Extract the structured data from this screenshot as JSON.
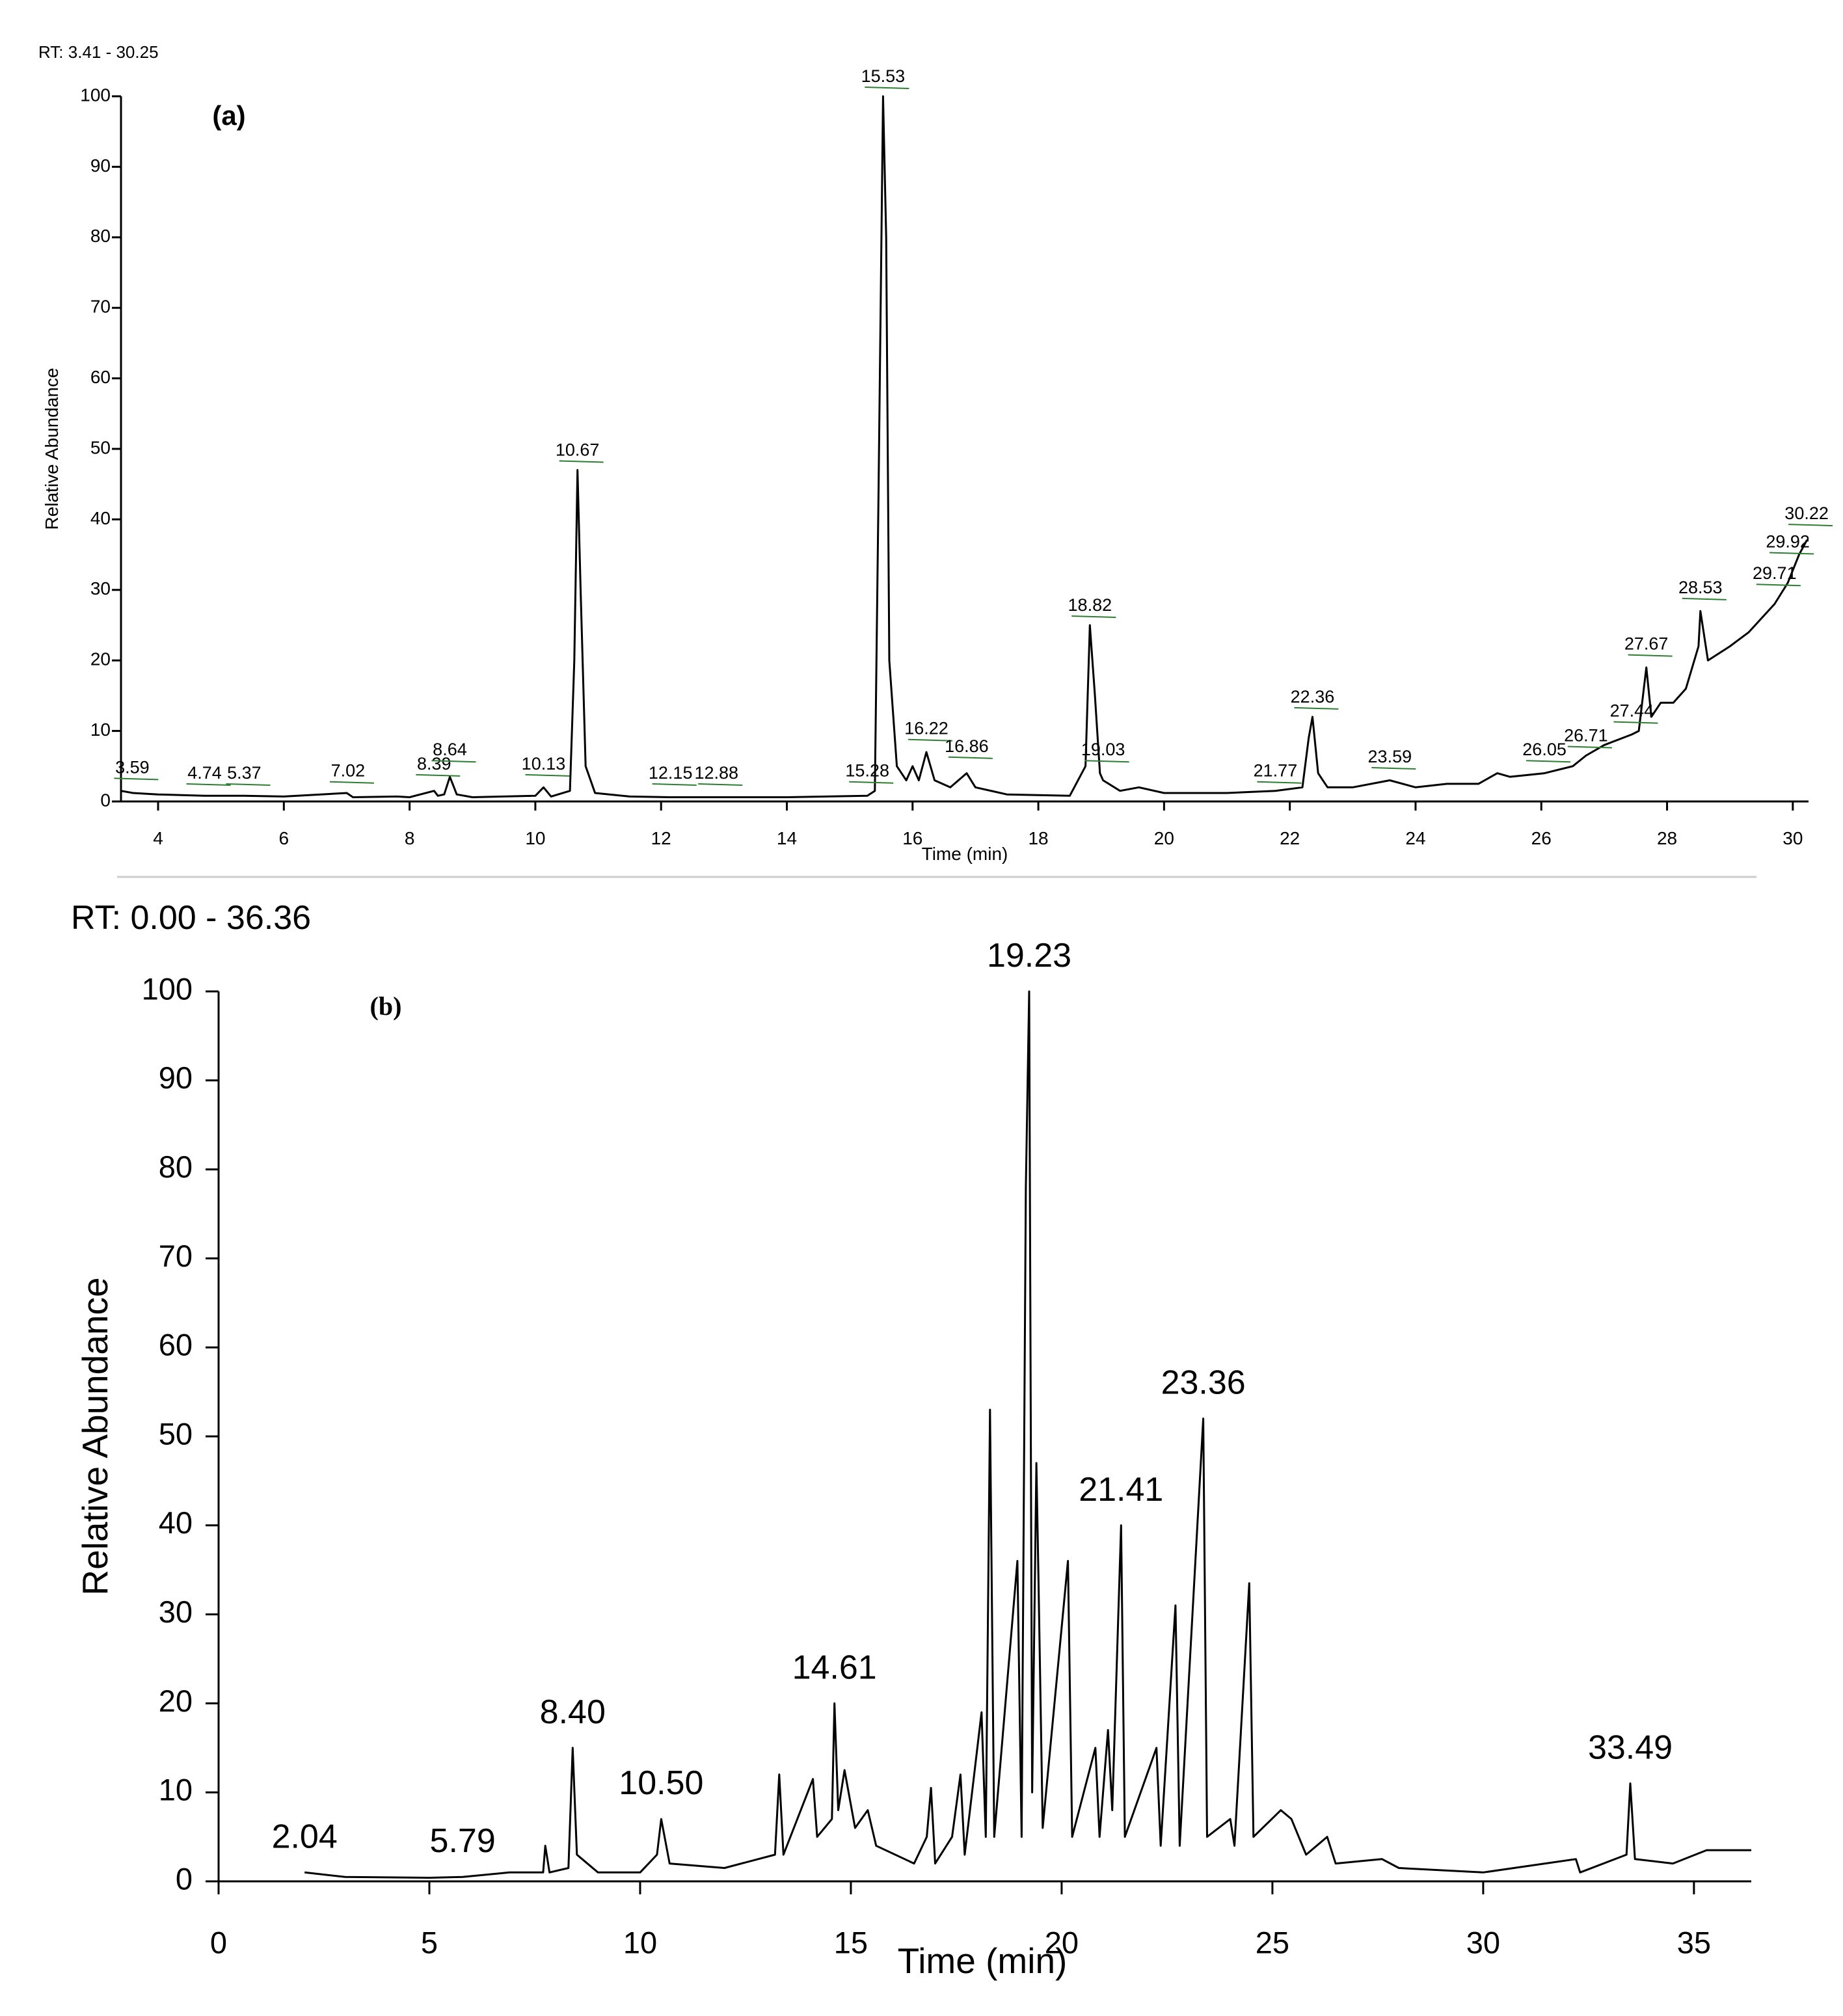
{
  "chart_data": [
    {
      "type": "line",
      "title": "RT: 3.41 - 30.25",
      "panel_label": "(a)",
      "x_label": "Time (min)",
      "y_label": "Relative Abundance",
      "color": "#000000",
      "xlim": [
        3.41,
        30.25
      ],
      "xticks": [
        4,
        6,
        8,
        10,
        12,
        14,
        16,
        18,
        20,
        22,
        24,
        26,
        28,
        30
      ],
      "ylim": [
        0,
        100
      ],
      "yticks": [
        0,
        10,
        20,
        30,
        40,
        50,
        60,
        70,
        80,
        90,
        100
      ],
      "x": [
        3.41,
        3.6,
        4.0,
        4.74,
        5.37,
        6,
        7.0,
        7.1,
        7.8,
        8.0,
        8.39,
        8.45,
        8.55,
        8.64,
        8.75,
        9.0,
        10.0,
        10.13,
        10.25,
        10.55,
        10.62,
        10.67,
        10.72,
        10.8,
        10.95,
        11.5,
        12.15,
        13,
        14,
        15.28,
        15.4,
        15.46,
        15.53,
        15.58,
        15.63,
        15.75,
        15.9,
        16.0,
        16.1,
        16.22,
        16.35,
        16.6,
        16.86,
        17,
        17.5,
        18.5,
        18.75,
        18.82,
        18.9,
        18.98,
        19.03,
        19.3,
        19.6,
        20,
        21,
        21.77,
        22.2,
        22.3,
        22.36,
        22.45,
        22.6,
        23,
        23.59,
        24,
        24.5,
        25,
        25.3,
        25.5,
        26.05,
        26.5,
        26.71,
        27.0,
        27.44,
        27.55,
        27.67,
        27.75,
        27.9,
        28.1,
        28.3,
        28.5,
        28.53,
        28.65,
        29.0,
        29.3,
        29.71,
        29.92,
        30.1,
        30.22,
        30.25
      ],
      "values": [
        1.5,
        1.2,
        1.0,
        0.8,
        0.8,
        0.7,
        1.2,
        0.6,
        0.7,
        0.6,
        1.5,
        0.8,
        1,
        3.5,
        1,
        0.6,
        0.8,
        2,
        0.7,
        1.5,
        20,
        47,
        30,
        5,
        1.2,
        0.7,
        0.6,
        0.6,
        0.6,
        0.8,
        1.5,
        45,
        100,
        80,
        20,
        5,
        3,
        5,
        3,
        7,
        3,
        2,
        4,
        2,
        1,
        0.8,
        5,
        25,
        15,
        4,
        3,
        1.5,
        2,
        1.2,
        1.2,
        1.5,
        2,
        9,
        12,
        4,
        2,
        2,
        3,
        2,
        2.5,
        2.5,
        4,
        3.5,
        4,
        5,
        6.5,
        8,
        9.5,
        10,
        19,
        12,
        14,
        14,
        16,
        22,
        27,
        20,
        22,
        24,
        28,
        31,
        35,
        37,
        37
      ],
      "annotations": [
        {
          "text": "3.59",
          "x": 3.59,
          "y": 2
        },
        {
          "text": "4.74",
          "x": 4.74,
          "y": 1.2
        },
        {
          "text": "5.37",
          "x": 5.37,
          "y": 1.2
        },
        {
          "text": "7.02",
          "x": 7.02,
          "y": 1.5
        },
        {
          "text": "8.39",
          "x": 8.39,
          "y": 2.5
        },
        {
          "text": "8.64",
          "x": 8.64,
          "y": 4.5
        },
        {
          "text": "10.13",
          "x": 10.13,
          "y": 2.5
        },
        {
          "text": "10.67",
          "x": 10.67,
          "y": 47
        },
        {
          "text": "12.15",
          "x": 12.15,
          "y": 1.2
        },
        {
          "text": "12.88",
          "x": 12.88,
          "y": 1.2
        },
        {
          "text": "15.28",
          "x": 15.28,
          "y": 1.5
        },
        {
          "text": "15.53",
          "x": 15.53,
          "y": 100
        },
        {
          "text": "16.22",
          "x": 16.22,
          "y": 7.5
        },
        {
          "text": "16.86",
          "x": 16.86,
          "y": 5
        },
        {
          "text": "18.82",
          "x": 18.82,
          "y": 25
        },
        {
          "text": "19.03",
          "x": 19.03,
          "y": 4.5
        },
        {
          "text": "21.77",
          "x": 21.77,
          "y": 1.5
        },
        {
          "text": "22.36",
          "x": 22.36,
          "y": 12
        },
        {
          "text": "23.59",
          "x": 23.59,
          "y": 3.5
        },
        {
          "text": "26.05",
          "x": 26.05,
          "y": 4.5
        },
        {
          "text": "26.71",
          "x": 26.71,
          "y": 6.5
        },
        {
          "text": "27.44",
          "x": 27.44,
          "y": 10
        },
        {
          "text": "27.67",
          "x": 27.67,
          "y": 19.5
        },
        {
          "text": "28.53",
          "x": 28.53,
          "y": 27.5
        },
        {
          "text": "29.71",
          "x": 29.71,
          "y": 29.5
        },
        {
          "text": "29.92",
          "x": 29.92,
          "y": 34
        },
        {
          "text": "30.22",
          "x": 30.22,
          "y": 38
        }
      ]
    },
    {
      "type": "line",
      "title": "RT: 0.00 - 36.36",
      "panel_label": "(b)",
      "x_label": "Time (min)",
      "y_label": "Relative Abundance",
      "color": "#000000",
      "xlim": [
        0,
        36.36
      ],
      "xticks": [
        0,
        5,
        10,
        15,
        20,
        25,
        30,
        35
      ],
      "ylim": [
        0,
        100
      ],
      "yticks": [
        0,
        10,
        20,
        30,
        40,
        50,
        60,
        70,
        80,
        90,
        100
      ],
      "x": [
        2.04,
        3,
        5,
        5.79,
        6.9,
        7.7,
        7.75,
        7.85,
        8.3,
        8.4,
        8.5,
        9,
        10,
        10.4,
        10.5,
        10.7,
        12,
        13.2,
        13.3,
        13.4,
        14.1,
        14.2,
        14.55,
        14.61,
        14.7,
        14.85,
        15.1,
        15.4,
        15.6,
        16.5,
        16.8,
        16.9,
        17.0,
        17.4,
        17.6,
        17.7,
        18.1,
        18.2,
        18.3,
        18.4,
        18.95,
        19.05,
        19.15,
        19.23,
        19.3,
        19.4,
        19.45,
        19.55,
        20.15,
        20.25,
        20.8,
        20.9,
        21.1,
        21.2,
        21.41,
        21.5,
        22.25,
        22.35,
        22.7,
        22.8,
        23.36,
        23.45,
        24.0,
        24.1,
        24.45,
        24.55,
        25.2,
        25.45,
        25.8,
        26.3,
        26.5,
        27.6,
        28,
        30,
        32.2,
        32.3,
        33.4,
        33.49,
        33.6,
        34.5,
        35.3,
        36.36
      ],
      "values": [
        1,
        0.5,
        0.4,
        0.5,
        1,
        1,
        4,
        1,
        1.5,
        15,
        3,
        1,
        1,
        3,
        7,
        2,
        1.5,
        3,
        12,
        3,
        11.5,
        5,
        7,
        20,
        8,
        12.5,
        6,
        8,
        4,
        2,
        5,
        10.5,
        2,
        5,
        12,
        3,
        19,
        5,
        53,
        5,
        36,
        5,
        78,
        100,
        10,
        47,
        34,
        6,
        36,
        5,
        15,
        5,
        17,
        8,
        40,
        5,
        15,
        4,
        31,
        4,
        52,
        5,
        7,
        4,
        33.5,
        5,
        8,
        7,
        3,
        5,
        2,
        2.5,
        1.5,
        1,
        2.5,
        1,
        3,
        11,
        2.5,
        2,
        3.5,
        3.5
      ],
      "annotations": [
        {
          "text": "2.04",
          "x": 2.04,
          "y": 1
        },
        {
          "text": "5.79",
          "x": 5.79,
          "y": 0.5
        },
        {
          "text": "8.40",
          "x": 8.4,
          "y": 15
        },
        {
          "text": "10.50",
          "x": 10.5,
          "y": 7
        },
        {
          "text": "14.61",
          "x": 14.61,
          "y": 20
        },
        {
          "text": "19.23",
          "x": 19.23,
          "y": 100
        },
        {
          "text": "21.41",
          "x": 21.41,
          "y": 40
        },
        {
          "text": "23.36",
          "x": 23.36,
          "y": 52
        },
        {
          "text": "33.49",
          "x": 33.49,
          "y": 11
        }
      ]
    }
  ]
}
